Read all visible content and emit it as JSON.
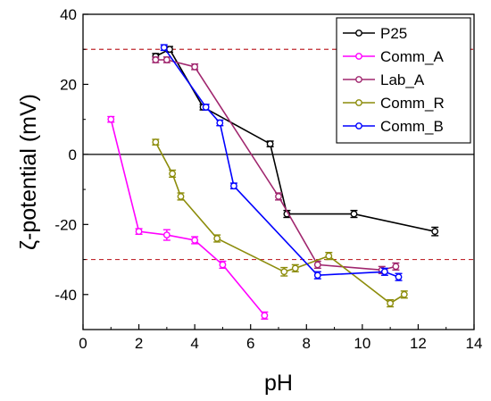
{
  "chart_data": {
    "type": "line",
    "title": "",
    "xlabel": "pH",
    "ylabel": "ζ-potential (mV)",
    "xlim": [
      0,
      14
    ],
    "ylim": [
      -50,
      40
    ],
    "xticks": [
      0,
      2,
      4,
      6,
      8,
      10,
      12,
      14
    ],
    "yticks": [
      -40,
      -20,
      0,
      20,
      40
    ],
    "grid": false,
    "legend_position": "top-right",
    "reference_lines": [
      {
        "axis": "y",
        "value": 30,
        "style": "dashed",
        "color": "#c0292f"
      },
      {
        "axis": "y",
        "value": 0,
        "style": "solid",
        "color": "#000000"
      },
      {
        "axis": "y",
        "value": -30,
        "style": "dashed",
        "color": "#c0292f"
      }
    ],
    "series": [
      {
        "name": "P25",
        "color": "#000000",
        "x": [
          2.6,
          3.1,
          4.3,
          6.7,
          7.3,
          9.7,
          12.6
        ],
        "y": [
          28,
          30,
          13.5,
          3,
          -17,
          -17,
          -22
        ],
        "err": [
          0.8,
          0.8,
          0.8,
          0.8,
          1,
          1,
          1.2
        ]
      },
      {
        "name": "Comm_A",
        "color": "#ff00ff",
        "x": [
          1.0,
          2.0,
          3.0,
          4.0,
          5.0,
          6.5
        ],
        "y": [
          10,
          -22,
          -23,
          -24.5,
          -31.5,
          -46
        ],
        "err": [
          0.8,
          0.8,
          1.5,
          1,
          1,
          1
        ]
      },
      {
        "name": "Lab_A",
        "color": "#a0266e",
        "x": [
          2.6,
          3.0,
          4.0,
          7.0,
          8.4,
          10.7,
          11.2
        ],
        "y": [
          27,
          27,
          25,
          -12,
          -31.5,
          -33,
          -32
        ],
        "err": [
          0.8,
          0.8,
          0.8,
          1,
          1,
          1,
          1
        ]
      },
      {
        "name": "Comm_R",
        "color": "#8c8c0a",
        "x": [
          2.6,
          3.2,
          3.5,
          4.8,
          7.2,
          7.6,
          8.8,
          11.0,
          11.5
        ],
        "y": [
          3.5,
          -5.5,
          -12,
          -24,
          -33.5,
          -32.5,
          -29,
          -42.5,
          -40
        ],
        "err": [
          0.8,
          1,
          1,
          1,
          1.2,
          1,
          1,
          1,
          1
        ]
      },
      {
        "name": "Comm_B",
        "color": "#0000ff",
        "x": [
          2.9,
          4.4,
          4.9,
          5.4,
          8.4,
          10.8,
          11.3
        ],
        "y": [
          30.5,
          13.5,
          9,
          -9,
          -34.5,
          -33.5,
          -35
        ],
        "err": [
          0.8,
          0.8,
          0.8,
          0.8,
          1,
          1,
          1
        ]
      }
    ]
  }
}
